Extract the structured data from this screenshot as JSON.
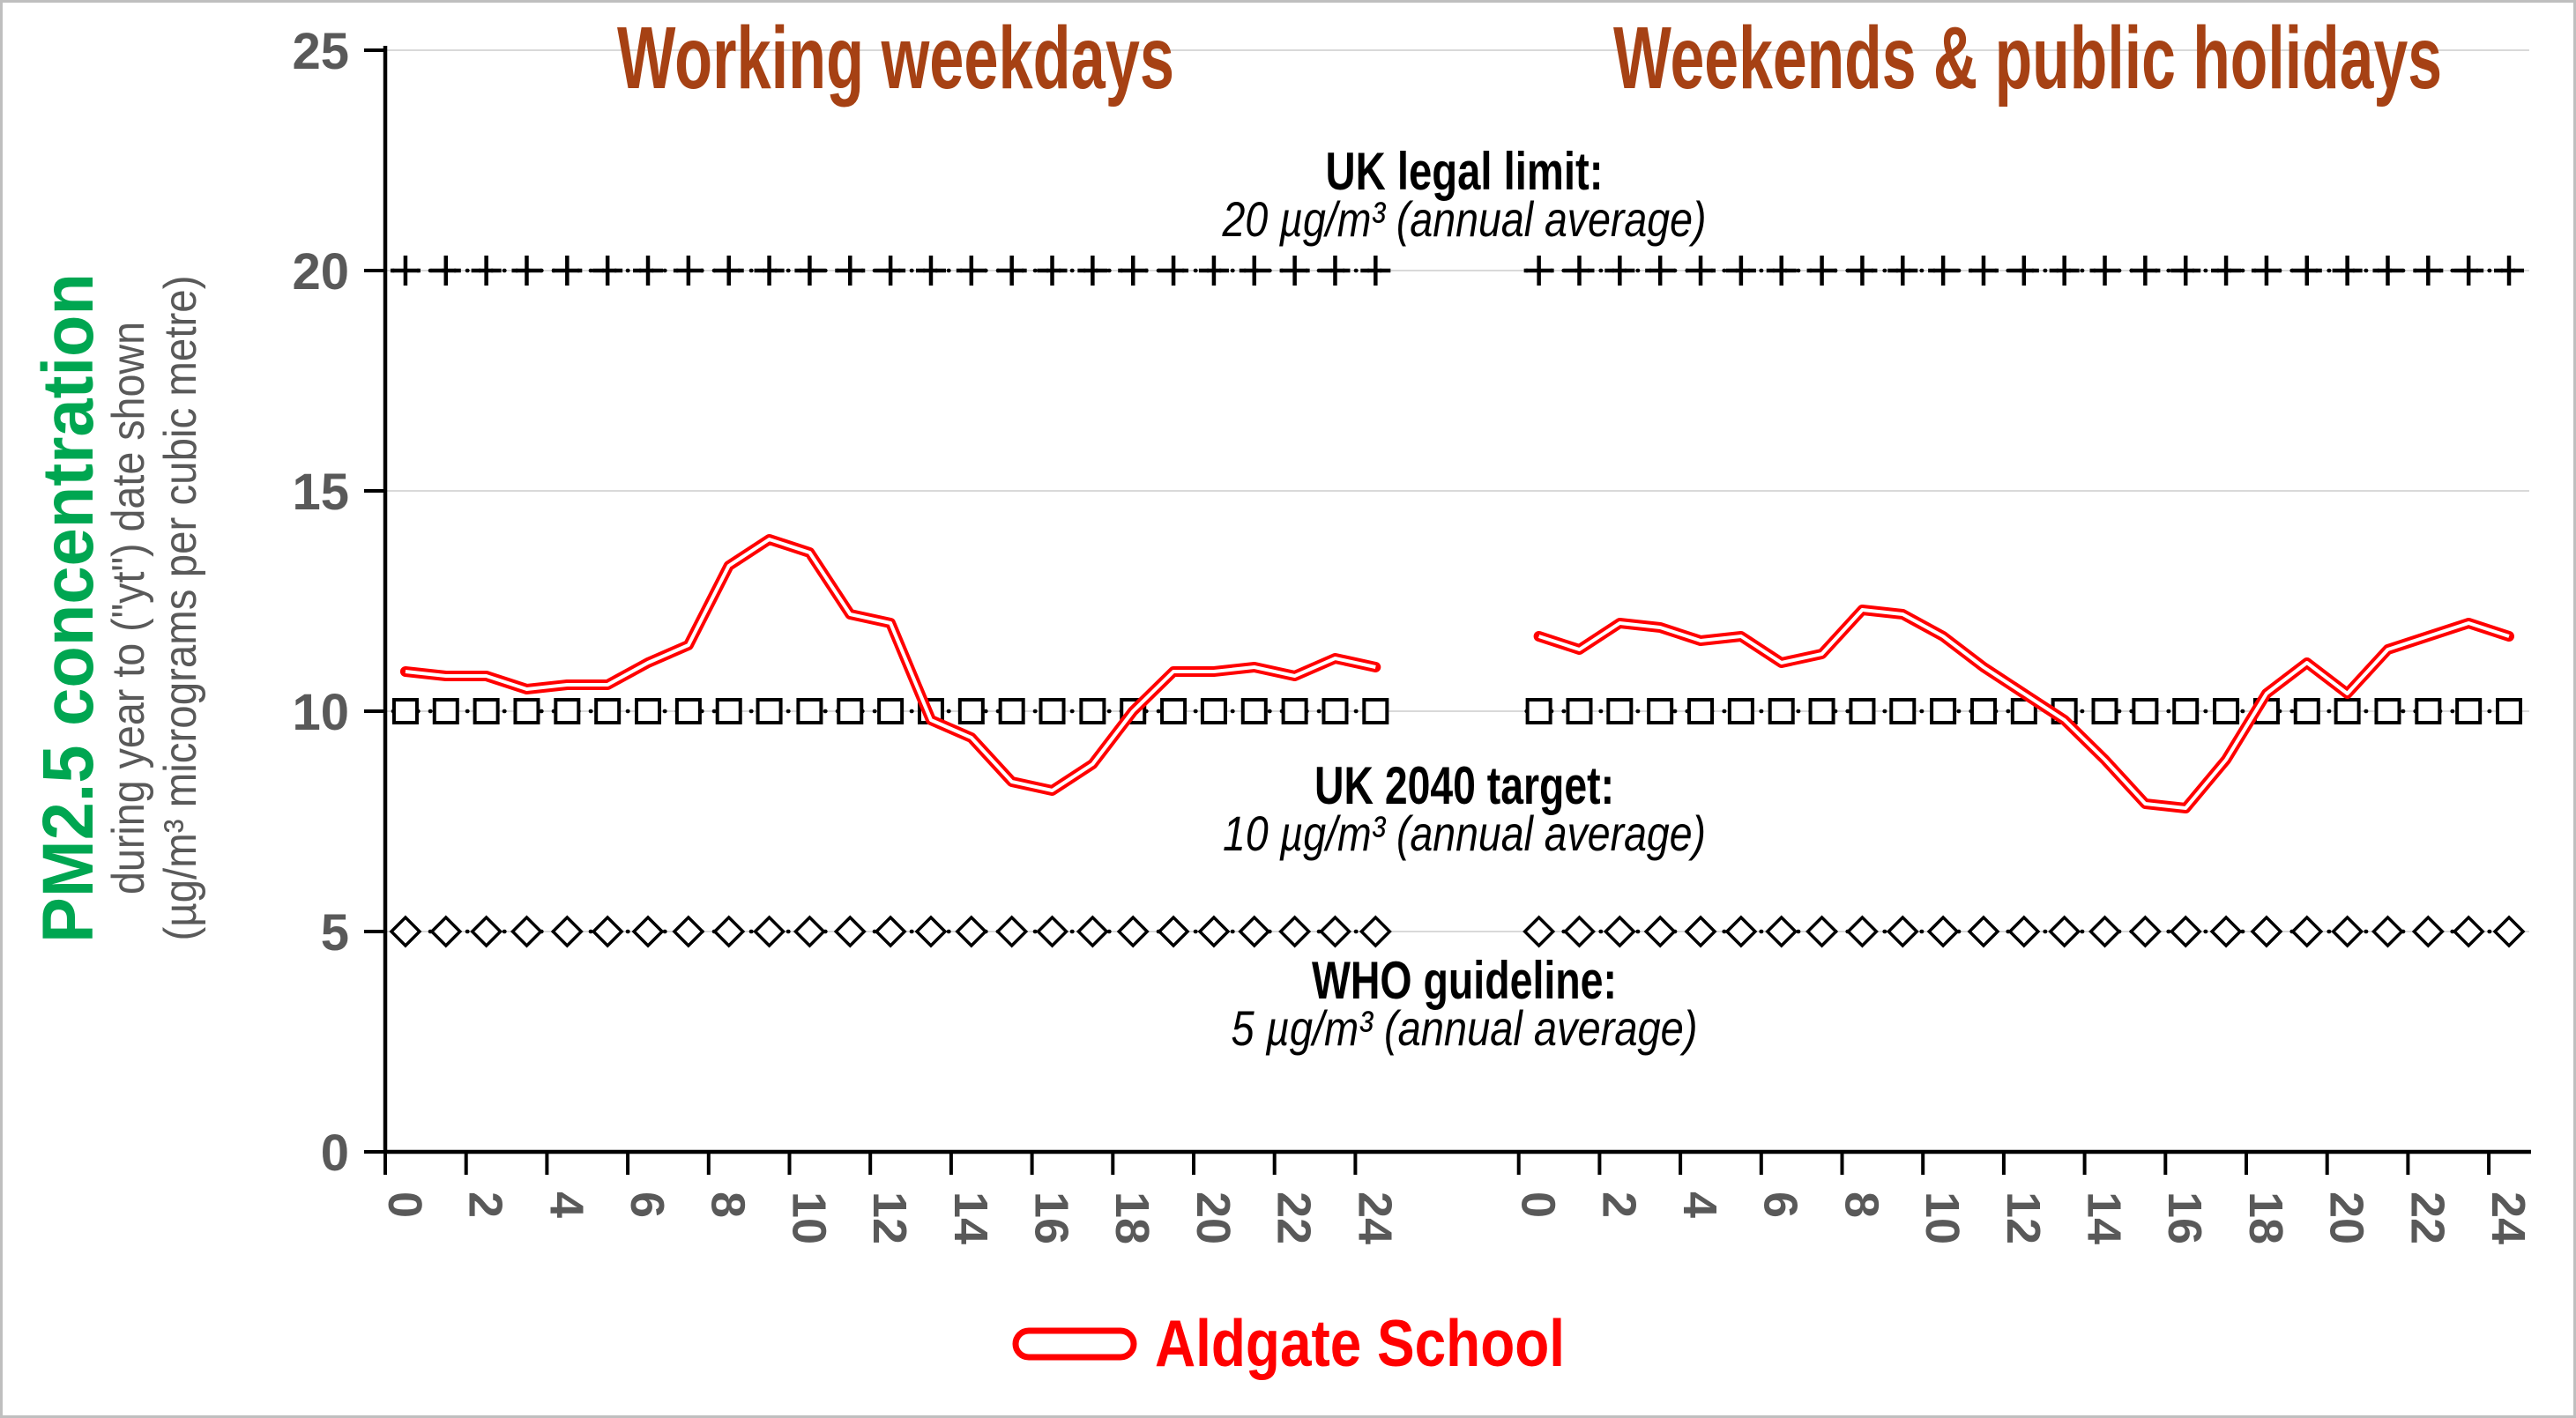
{
  "window": {
    "background": "#FFFFFF",
    "border_color": "#BFBFBF"
  },
  "colors": {
    "series_red": "#FF0000",
    "title_brown": "#A64114",
    "axis_label_gray": "#595959",
    "green_accent": "#00A651",
    "gridline_gray": "#D9D9D9",
    "reference_black": "#000000"
  },
  "y_axis": {
    "title_main": "PM2.5 concentration",
    "title_sub1": "during year to (\"yt\") date shown",
    "title_sub2": "(µg/m³ micrograms per cubic metre)",
    "tick_labels": [
      "0",
      "5",
      "10",
      "15",
      "20",
      "25"
    ]
  },
  "x_axis": {
    "tick_labels": [
      "0",
      "2",
      "4",
      "6",
      "8",
      "10",
      "12",
      "14",
      "16",
      "18",
      "20",
      "22",
      "24"
    ]
  },
  "chart_data": {
    "type": "line",
    "hours": [
      0,
      1,
      2,
      3,
      4,
      5,
      6,
      7,
      8,
      9,
      10,
      11,
      12,
      13,
      14,
      15,
      16,
      17,
      18,
      19,
      20,
      21,
      22,
      23,
      24
    ],
    "xlim": [
      0,
      24
    ],
    "ylim": [
      0,
      25
    ],
    "grid": "horizontal-major",
    "panels": [
      {
        "title": "Working weekdays",
        "series": [
          {
            "name": "Aldgate School",
            "values": [
              10.9,
              10.8,
              10.8,
              10.5,
              10.6,
              10.6,
              11.1,
              11.5,
              13.3,
              13.9,
              13.6,
              12.2,
              12.0,
              9.8,
              9.4,
              8.4,
              8.2,
              8.8,
              10.0,
              10.9,
              10.9,
              11.0,
              10.8,
              11.2,
              11.0
            ]
          }
        ]
      },
      {
        "title": "Weekends & public holidays",
        "series": [
          {
            "name": "Aldgate School",
            "values": [
              11.7,
              11.4,
              12.0,
              11.9,
              11.6,
              11.7,
              11.1,
              11.3,
              12.3,
              12.2,
              11.7,
              11.0,
              10.4,
              9.8,
              8.9,
              7.9,
              7.8,
              8.9,
              10.4,
              11.1,
              10.4,
              11.4,
              11.7,
              12.0,
              11.7
            ]
          }
        ]
      }
    ],
    "reference_lines": [
      {
        "value": 20,
        "marker": "plus",
        "label_bold": "UK legal limit:",
        "label_italic": "20 µg/m³ (annual average)",
        "label_position": "above"
      },
      {
        "value": 10,
        "marker": "square",
        "label_bold": "UK 2040 target:",
        "label_italic": "10 µg/m³ (annual average)",
        "label_position": "below"
      },
      {
        "value": 5,
        "marker": "diamond",
        "label_bold": "WHO guideline:",
        "label_italic": "5 µg/m³ (annual average)",
        "label_position": "below"
      }
    ],
    "legend": {
      "label": "Aldgate School",
      "position": "bottom-center"
    }
  }
}
